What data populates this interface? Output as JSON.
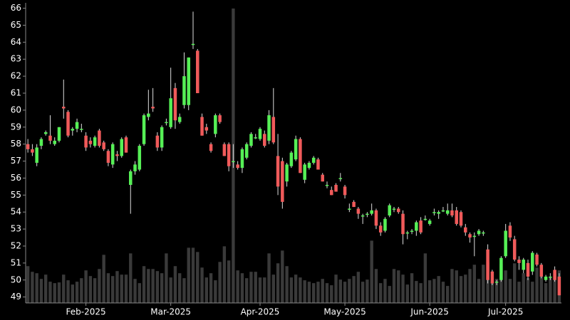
{
  "chart_data": {
    "type": "candlestick",
    "categories": [
      null,
      null,
      null,
      null,
      null,
      null,
      null,
      null,
      null,
      null,
      null,
      null,
      null,
      "Feb-2025",
      null,
      null,
      null,
      null,
      null,
      null,
      null,
      null,
      null,
      null,
      null,
      null,
      null,
      null,
      null,
      null,
      null,
      null,
      "Mar-2025",
      null,
      null,
      null,
      null,
      null,
      null,
      null,
      null,
      null,
      null,
      null,
      null,
      null,
      null,
      null,
      null,
      null,
      null,
      null,
      "Apr-2025",
      null,
      null,
      null,
      null,
      null,
      null,
      null,
      null,
      null,
      null,
      null,
      null,
      null,
      null,
      null,
      null,
      null,
      null,
      "May-2025",
      null,
      null,
      null,
      null,
      null,
      null,
      null,
      null,
      null,
      null,
      null,
      null,
      null,
      null,
      null,
      null,
      null,
      null,
      "Jun-2025",
      null,
      null,
      null,
      null,
      null,
      null,
      null,
      null,
      null,
      null,
      null,
      null,
      null,
      null,
      null,
      null,
      "Jul-2025",
      null,
      null,
      null,
      null,
      null,
      null,
      null,
      null,
      null,
      null,
      null,
      null
    ],
    "open": [
      58.0,
      57.7,
      56.9,
      57.9,
      58.6,
      58.5,
      58.0,
      58.2,
      60.2,
      59.9,
      58.8,
      58.9,
      58.9,
      58.5,
      58.2,
      57.9,
      58.8,
      58.1,
      57.6,
      56.8,
      57.4,
      57.3,
      58.4,
      55.6,
      56.4,
      56.5,
      58.0,
      59.6,
      60.2,
      58.5,
      57.8,
      59.3,
      59.0,
      61.3,
      59.3,
      60.3,
      60.3,
      63.9,
      63.5,
      59.6,
      59.0,
      58.0,
      58.6,
      59.7,
      58.0,
      58.0,
      57.0,
      56.8,
      56.6,
      57.2,
      57.9,
      58.4,
      58.3,
      58.6,
      58.2,
      59.6,
      57.3,
      57.0,
      55.8,
      56.7,
      57.1,
      58.3,
      55.9,
      56.6,
      56.9,
      57.1,
      56.2,
      55.6,
      55.3,
      55.6,
      56.0,
      55.5,
      54.2,
      54.6,
      54.2,
      53.8,
      53.9,
      53.9,
      54.1,
      53.2,
      52.9,
      53.8,
      54.2,
      54.2,
      53.9,
      52.8,
      52.9,
      52.9,
      53.5,
      53.6,
      53.3,
      54.0,
      53.9,
      54.1,
      53.9,
      54.1,
      54.1,
      54.0,
      53.1,
      52.7,
      52.6,
      52.7,
      52.8,
      51.8,
      50.5,
      49.9,
      50.0,
      51.4,
      53.2,
      52.4,
      51.2,
      50.6,
      51.0,
      50.5,
      51.5,
      50.9,
      50.0,
      50.2,
      50.6,
      50.2
    ],
    "high": [
      58.3,
      58.0,
      58.0,
      58.4,
      58.8,
      59.7,
      58.4,
      59.0,
      61.8,
      60.0,
      59.0,
      59.5,
      59.2,
      58.7,
      58.4,
      58.5,
      58.9,
      58.2,
      57.7,
      58.1,
      57.6,
      58.4,
      58.5,
      56.5,
      57.0,
      58.0,
      59.8,
      61.2,
      61.3,
      58.7,
      59.1,
      59.5,
      62.5,
      61.6,
      59.8,
      63.4,
      63.1,
      65.8,
      63.6,
      59.8,
      59.2,
      58.1,
      59.8,
      59.8,
      58.1,
      58.1,
      58.0,
      57.0,
      57.8,
      58.1,
      58.7,
      58.6,
      59.0,
      58.8,
      60.0,
      61.3,
      58.6,
      57.2,
      56.9,
      57.6,
      58.5,
      58.4,
      56.9,
      57.0,
      57.3,
      57.2,
      56.3,
      55.8,
      55.5,
      55.7,
      56.3,
      55.6,
      54.5,
      54.7,
      54.3,
      53.9,
      54.0,
      54.5,
      54.2,
      53.4,
      53.7,
      54.5,
      54.3,
      54.3,
      54.1,
      52.9,
      53.0,
      53.5,
      53.7,
      53.8,
      53.6,
      54.2,
      54.1,
      54.3,
      54.5,
      54.5,
      54.3,
      54.1,
      53.3,
      52.8,
      52.8,
      53.0,
      52.9,
      52.1,
      50.6,
      50.0,
      51.4,
      53.3,
      53.4,
      52.6,
      51.4,
      51.3,
      51.2,
      51.7,
      51.6,
      51.0,
      50.3,
      50.4,
      50.8,
      50.4
    ],
    "low": [
      57.5,
      57.3,
      56.7,
      57.7,
      58.5,
      58.0,
      57.9,
      58.1,
      59.5,
      58.4,
      58.5,
      58.7,
      58.7,
      57.6,
      57.8,
      57.8,
      57.8,
      57.6,
      56.7,
      56.6,
      57.0,
      57.2,
      57.5,
      53.9,
      56.2,
      56.4,
      57.9,
      59.4,
      59.9,
      57.6,
      57.6,
      59.1,
      58.9,
      58.9,
      59.2,
      60.1,
      60.0,
      63.6,
      61.0,
      58.5,
      58.6,
      57.5,
      58.4,
      59.2,
      57.3,
      56.4,
      56.6,
      56.5,
      56.3,
      57.1,
      57.8,
      58.3,
      58.2,
      57.8,
      58.0,
      58.0,
      55.0,
      54.2,
      55.5,
      56.6,
      57.0,
      56.3,
      55.7,
      56.5,
      56.8,
      56.5,
      55.8,
      55.4,
      55.0,
      55.2,
      55.8,
      54.8,
      54.0,
      54.3,
      53.6,
      53.3,
      53.7,
      53.8,
      53.0,
      52.6,
      52.8,
      53.7,
      54.0,
      53.9,
      52.1,
      52.4,
      52.7,
      52.6,
      52.7,
      53.5,
      53.2,
      53.8,
      53.6,
      54.0,
      53.8,
      53.7,
      53.2,
      53.1,
      52.6,
      52.2,
      51.4,
      52.6,
      52.6,
      49.8,
      49.7,
      49.7,
      49.9,
      51.3,
      52.3,
      51.1,
      50.6,
      50.4,
      50.0,
      50.3,
      50.8,
      50.1,
      49.9,
      50.0,
      49.9,
      49.1
    ],
    "close": [
      57.7,
      57.5,
      57.8,
      58.3,
      58.7,
      58.2,
      58.2,
      59.0,
      60.1,
      58.5,
      58.9,
      59.3,
      58.9,
      57.8,
      58.0,
      58.4,
      57.9,
      57.7,
      56.9,
      58.0,
      57.3,
      58.3,
      57.5,
      56.4,
      56.8,
      57.9,
      59.7,
      59.8,
      60.1,
      57.8,
      59.0,
      59.3,
      60.7,
      59.4,
      59.6,
      62.0,
      63.1,
      63.9,
      61.0,
      58.5,
      58.8,
      57.6,
      59.7,
      59.3,
      57.3,
      56.7,
      57.0,
      56.6,
      57.7,
      58.0,
      58.6,
      58.4,
      58.9,
      57.9,
      59.7,
      58.1,
      55.5,
      54.6,
      56.8,
      57.5,
      58.3,
      56.3,
      56.8,
      56.9,
      57.2,
      56.5,
      55.8,
      55.6,
      55.0,
      55.2,
      56.0,
      55.0,
      54.2,
      54.3,
      53.9,
      53.8,
      53.9,
      54.1,
      53.2,
      52.8,
      53.6,
      54.4,
      54.2,
      54.0,
      52.7,
      52.8,
      52.9,
      53.4,
      52.8,
      53.6,
      53.5,
      54.0,
      54.0,
      54.1,
      54.1,
      53.8,
      53.3,
      53.2,
      52.8,
      52.5,
      52.6,
      52.9,
      52.8,
      50.0,
      49.8,
      49.9,
      51.3,
      52.9,
      52.5,
      51.2,
      51.0,
      51.2,
      50.2,
      51.6,
      50.9,
      50.2,
      50.2,
      50.2,
      50.0,
      49.1
    ],
    "volume": [
      52,
      44,
      42,
      34,
      40,
      30,
      28,
      29,
      40,
      32,
      26,
      30,
      35,
      46,
      38,
      35,
      48,
      68,
      42,
      38,
      45,
      40,
      40,
      70,
      34,
      28,
      52,
      48,
      48,
      45,
      42,
      70,
      36,
      52,
      42,
      35,
      78,
      78,
      72,
      50,
      36,
      42,
      32,
      58,
      80,
      60,
      416,
      46,
      42,
      35,
      44,
      44,
      36,
      36,
      70,
      40,
      56,
      74,
      52,
      36,
      40,
      36,
      32,
      30,
      28,
      30,
      34,
      28,
      25,
      40,
      33,
      30,
      34,
      38,
      44,
      30,
      33,
      88,
      48,
      28,
      34,
      24,
      48,
      46,
      40,
      26,
      42,
      31,
      28,
      70,
      32,
      34,
      38,
      30,
      24,
      48,
      46,
      38,
      40,
      48,
      54,
      34,
      54,
      58,
      30,
      34,
      55,
      46,
      34,
      56,
      30,
      42,
      35,
      30,
      50,
      40,
      28,
      36,
      44,
      46
    ],
    "vlim": [
      0,
      420
    ],
    "ylim": [
      48.65,
      66.15
    ],
    "yticks": [
      49,
      50,
      51,
      52,
      53,
      54,
      55,
      56,
      57,
      58,
      59,
      60,
      61,
      62,
      63,
      64,
      65,
      66
    ],
    "up_color": "#56f056",
    "down_color": "#f05a5a",
    "wick_color": "#dddddd",
    "volume_color": "#3a3a3a"
  }
}
